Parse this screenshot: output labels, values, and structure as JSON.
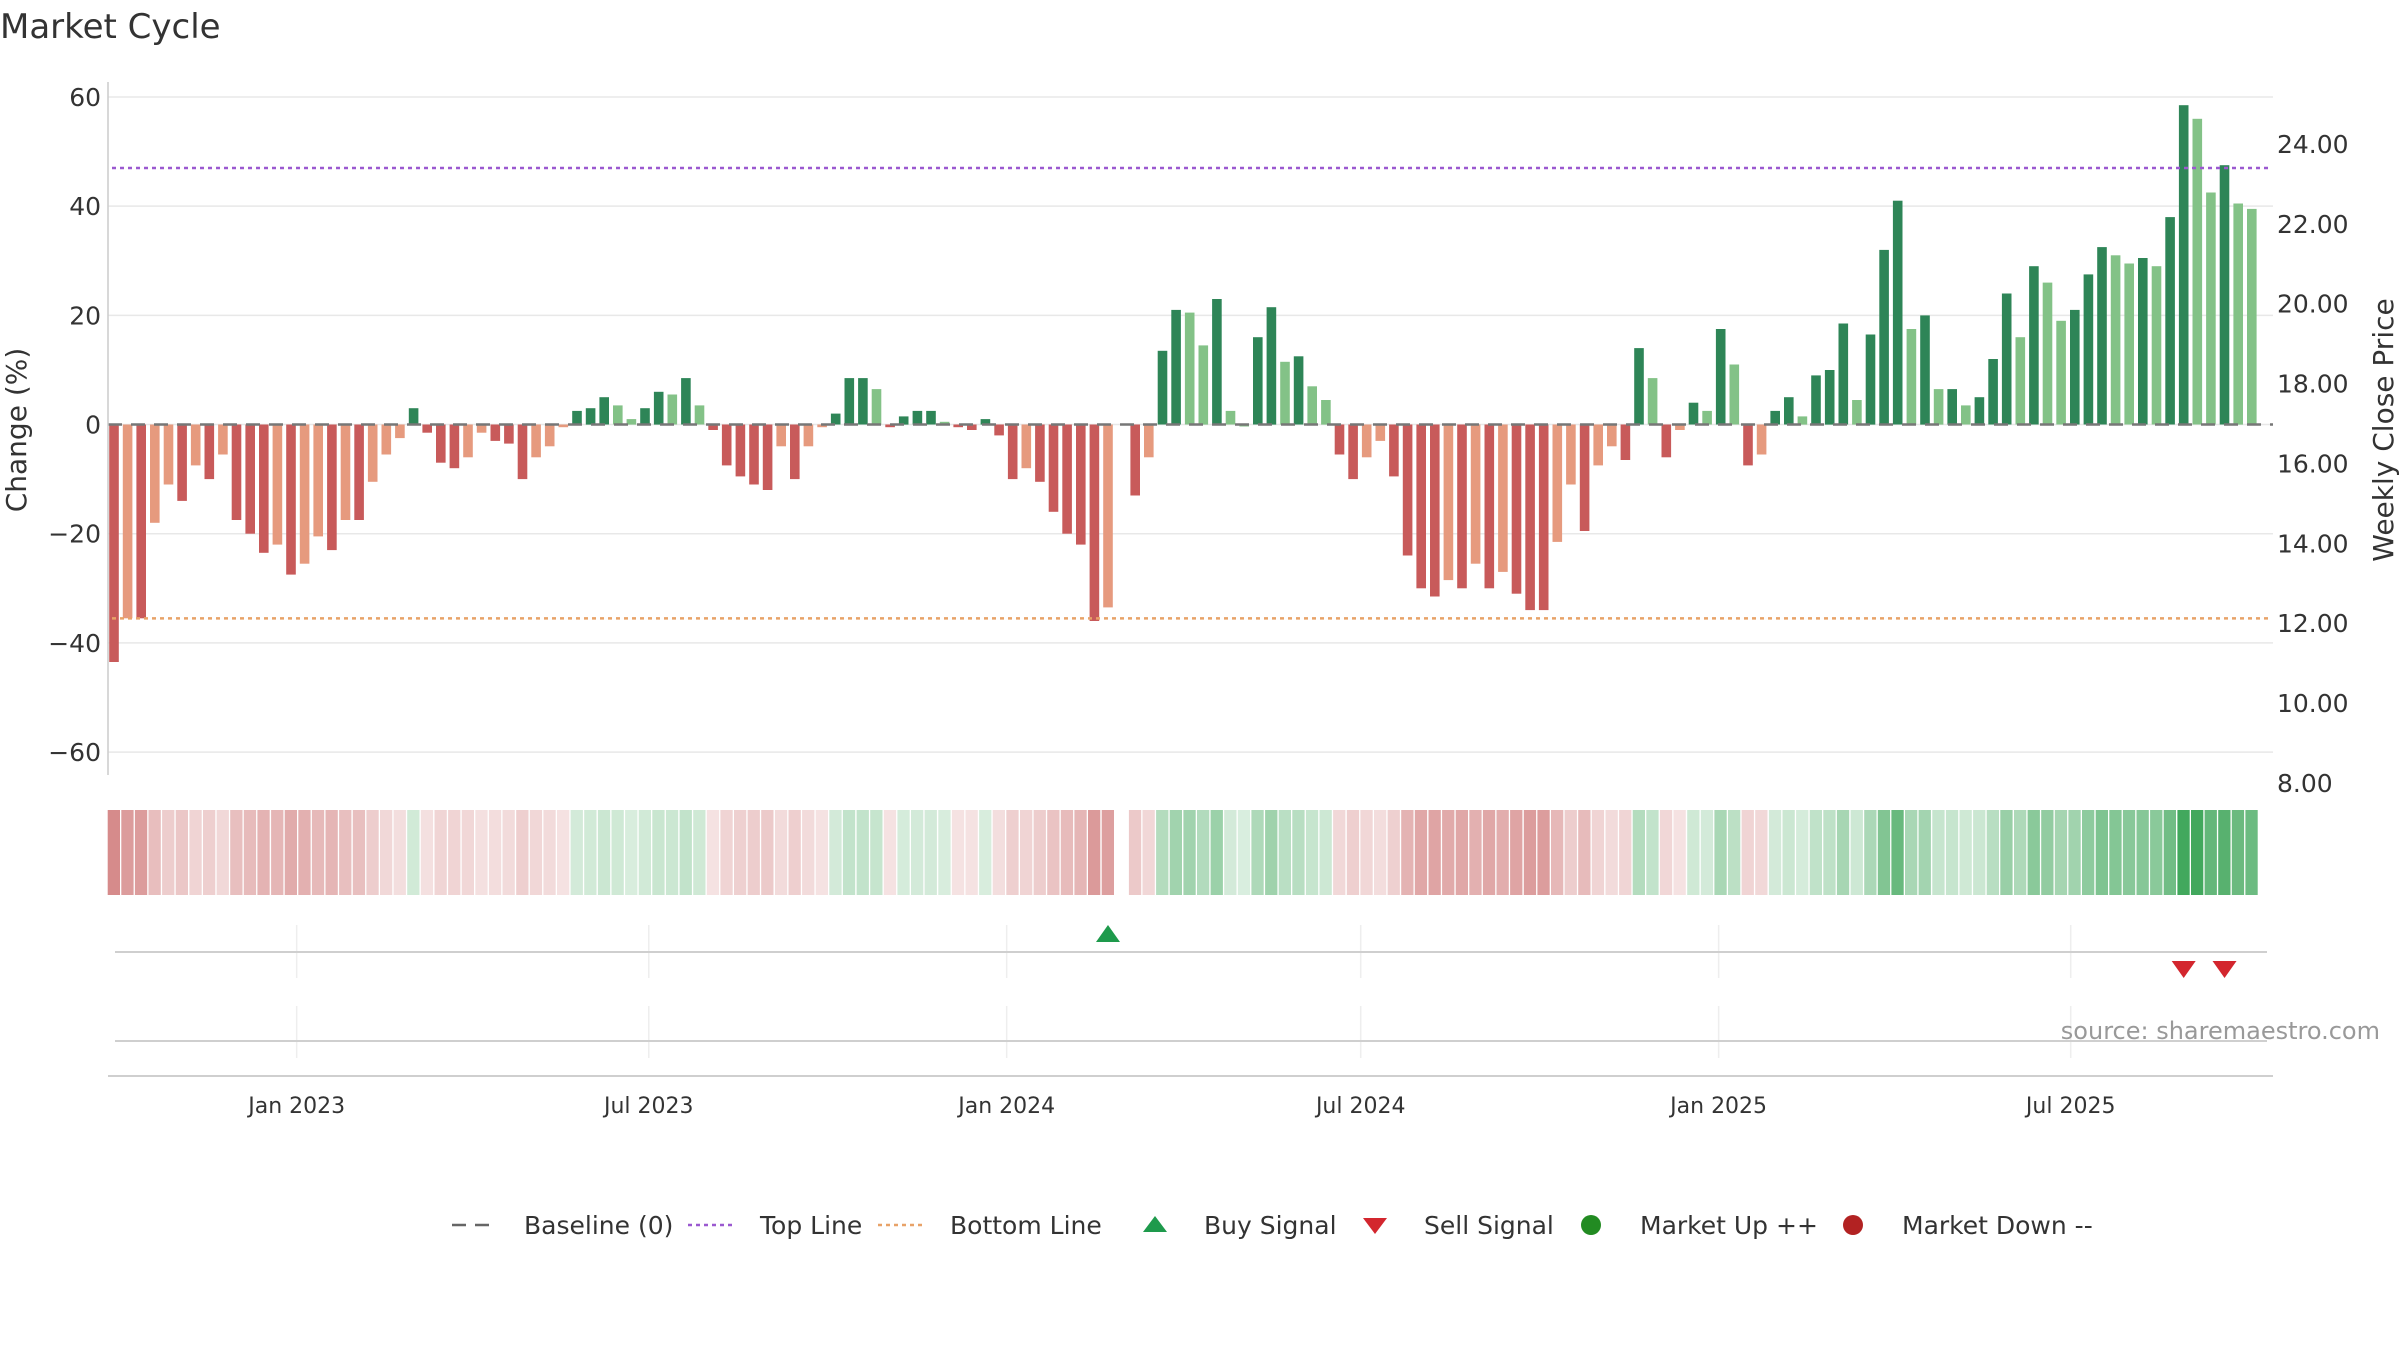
{
  "chart_data": {
    "type": "bar",
    "title": "Market Cycle",
    "ylabel": "Change (%)",
    "y2label": "Weekly Close Price",
    "ylim": [
      -62,
      60
    ],
    "y2lim": [
      7.8,
      25.0
    ],
    "yticks": [
      60,
      40,
      20,
      0,
      -20,
      -40,
      -60
    ],
    "ytick_labels": [
      "60",
      "40",
      "20",
      "0",
      "−20",
      "−40",
      "−60"
    ],
    "y2ticks": [
      24.0,
      22.0,
      20.0,
      18.0,
      16.0,
      14.0,
      12.0,
      10.0,
      8.0
    ],
    "y2tick_labels": [
      "24.00",
      "22.00",
      "20.00",
      "18.00",
      "16.00",
      "14.00",
      "12.00",
      "10.00",
      "8.00"
    ],
    "xlim": [
      "2022-09-26",
      "2025-10-13"
    ],
    "xticks": [
      "2023-01-01",
      "2023-07-01",
      "2024-01-01",
      "2024-07-01",
      "2025-01-01",
      "2025-07-01"
    ],
    "xtick_labels": [
      "Jan 2023",
      "Jul 2023",
      "Jan 2024",
      "Jul 2024",
      "Jan 2025",
      "Jul 2025"
    ],
    "top_line": 47,
    "bottom_line": -35.5,
    "baseline": 0,
    "grid": true,
    "legend_position": "bottom",
    "first_week": "2022-09-26",
    "weekly_change": [
      -43.5,
      -35.5,
      -35.5,
      -18,
      -11,
      -14,
      -7.5,
      -10,
      -5.5,
      -17.5,
      -20,
      -23.5,
      -22,
      -27.5,
      -25.5,
      -20.5,
      -23,
      -17.5,
      -17.5,
      -10.5,
      -5.5,
      -2.5,
      3,
      -1.5,
      -7,
      -8,
      -6,
      -1.5,
      -3,
      -3.5,
      -10,
      -6,
      -4,
      -0.5,
      2.5,
      3,
      5,
      3.5,
      1,
      3,
      6,
      5.5,
      8.5,
      3.5,
      -1,
      -7.5,
      -9.5,
      -11,
      -12,
      -4,
      -10,
      -4,
      -0.5,
      2,
      8.5,
      8.5,
      6.5,
      -0.5,
      1.5,
      2.5,
      2.5,
      0.5,
      -0.5,
      -1,
      1,
      -2,
      -10,
      -8,
      -10.5,
      -16,
      -20,
      -22,
      -36,
      -33.5,
      null,
      -13,
      -6,
      13.5,
      21,
      20.5,
      14.5,
      23,
      2.5,
      0,
      16,
      21.5,
      11.5,
      12.5,
      7,
      4.5,
      -5.5,
      -10,
      -6,
      -3,
      -9.5,
      -24,
      -30,
      -31.5,
      -28.5,
      -30,
      -25.5,
      -30,
      -27,
      -31,
      -34,
      -34,
      -21.5,
      -11,
      -19.5,
      -7.5,
      -4,
      -6.5,
      14,
      8.5,
      -6,
      -1,
      4,
      2.5,
      17.5,
      11,
      -7.5,
      -5.5,
      2.5,
      5,
      1.5,
      9,
      10,
      18.5,
      4.5,
      16.5,
      32,
      41,
      17.5,
      20,
      6.5,
      6.5,
      3.5,
      5,
      12,
      24,
      16,
      29,
      26,
      19,
      21,
      27.5,
      32.5,
      31,
      29.5,
      30.5,
      29,
      38,
      58.5,
      56,
      42.5,
      47.5,
      40.5,
      39.5
    ],
    "weekly_close": [],
    "buy_signals": [
      "2024-02-19"
    ],
    "sell_signals": [
      "2025-08-25",
      "2025-09-15"
    ],
    "market_up": [],
    "market_down": [],
    "source": "source: sharemaestro.com",
    "colors": {
      "down_strong": "#c85a5a",
      "down_weak": "#e69a7e",
      "up_strong": "#2e8557",
      "up_weak": "#83c287",
      "top_line": "#9b59d0",
      "bottom_line": "#e8a268",
      "baseline": "#777777",
      "buy": "#1e9a4c",
      "sell": "#d3262e",
      "market_up": "#228b22",
      "market_down": "#b22222",
      "grid": "#e8e8e8",
      "heat_neg": "#c86464",
      "heat_pos": "#2e9e4b"
    },
    "legend": [
      {
        "key": "baseline",
        "label": "Baseline (0)",
        "symbol": "dash"
      },
      {
        "key": "top",
        "label": "Top Line",
        "symbol": "dot-purple"
      },
      {
        "key": "bottom",
        "label": "Bottom Line",
        "symbol": "dot-orange"
      },
      {
        "key": "buy",
        "label": "Buy Signal",
        "symbol": "triangle-up"
      },
      {
        "key": "sell",
        "label": "Sell Signal",
        "symbol": "triangle-down"
      },
      {
        "key": "mup",
        "label": "Market Up ++",
        "symbol": "circle-green"
      },
      {
        "key": "mdown",
        "label": "Market Down --",
        "symbol": "circle-red"
      }
    ]
  }
}
